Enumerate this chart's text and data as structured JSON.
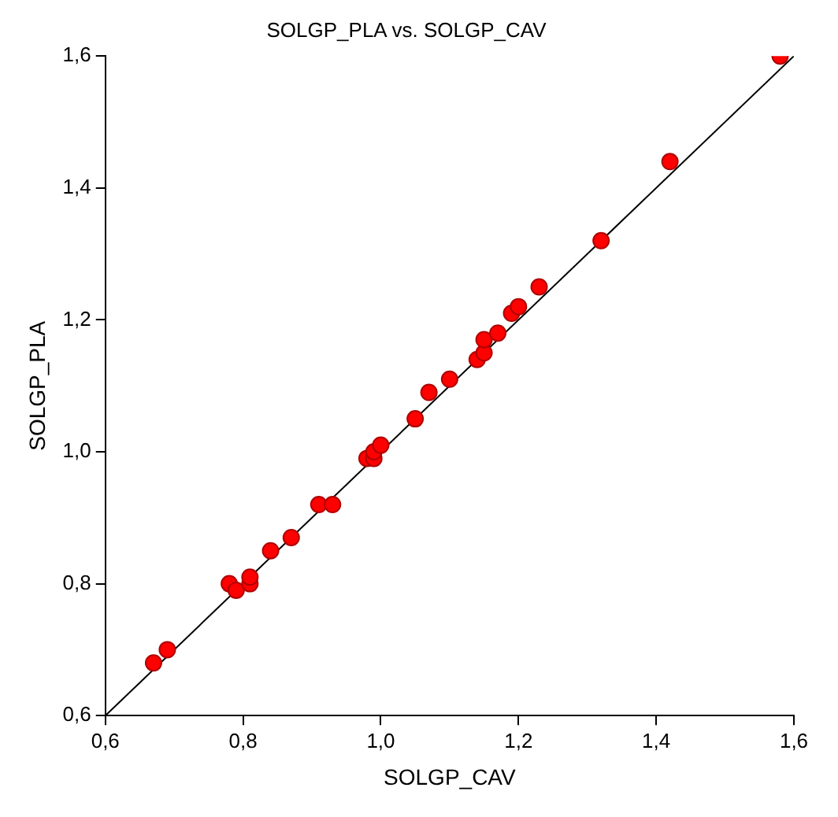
{
  "chart_data": {
    "type": "scatter",
    "title": "SOLGP_PLA vs. SOLGP_CAV",
    "xlabel": "SOLGP_CAV",
    "ylabel": "SOLGP_PLA",
    "xlim": [
      0.6,
      1.6
    ],
    "ylim": [
      0.6,
      1.6
    ],
    "xticks": [
      {
        "value": 0.6,
        "label": "0,6"
      },
      {
        "value": 0.8,
        "label": "0,8"
      },
      {
        "value": 1.0,
        "label": "1,0"
      },
      {
        "value": 1.2,
        "label": "1,2"
      },
      {
        "value": 1.4,
        "label": "1,4"
      },
      {
        "value": 1.6,
        "label": "1,6"
      }
    ],
    "yticks": [
      {
        "value": 0.6,
        "label": "0,6"
      },
      {
        "value": 0.8,
        "label": "0,8"
      },
      {
        "value": 1.0,
        "label": "1,0"
      },
      {
        "value": 1.2,
        "label": "1,2"
      },
      {
        "value": 1.4,
        "label": "1,4"
      },
      {
        "value": 1.6,
        "label": "1,6"
      }
    ],
    "grid": false,
    "legend": false,
    "series": [
      {
        "marker": "circle",
        "color": "#ff0000",
        "x": [
          0.67,
          0.69,
          0.78,
          0.79,
          0.81,
          0.81,
          0.84,
          0.87,
          0.91,
          0.93,
          0.98,
          0.99,
          0.99,
          1.0,
          1.05,
          1.07,
          1.1,
          1.14,
          1.15,
          1.15,
          1.17,
          1.19,
          1.2,
          1.23,
          1.32,
          1.42,
          1.58
        ],
        "values": [
          0.68,
          0.7,
          0.8,
          0.79,
          0.8,
          0.81,
          0.85,
          0.87,
          0.92,
          0.92,
          0.99,
          0.99,
          1.0,
          1.01,
          1.05,
          1.09,
          1.11,
          1.14,
          1.15,
          1.17,
          1.18,
          1.21,
          1.22,
          1.25,
          1.32,
          1.44,
          1.6
        ]
      },
      {
        "type": "line",
        "marker": "none",
        "color": "#000000",
        "x": [
          0.6,
          1.6
        ],
        "values": [
          0.6,
          1.6
        ]
      }
    ]
  }
}
